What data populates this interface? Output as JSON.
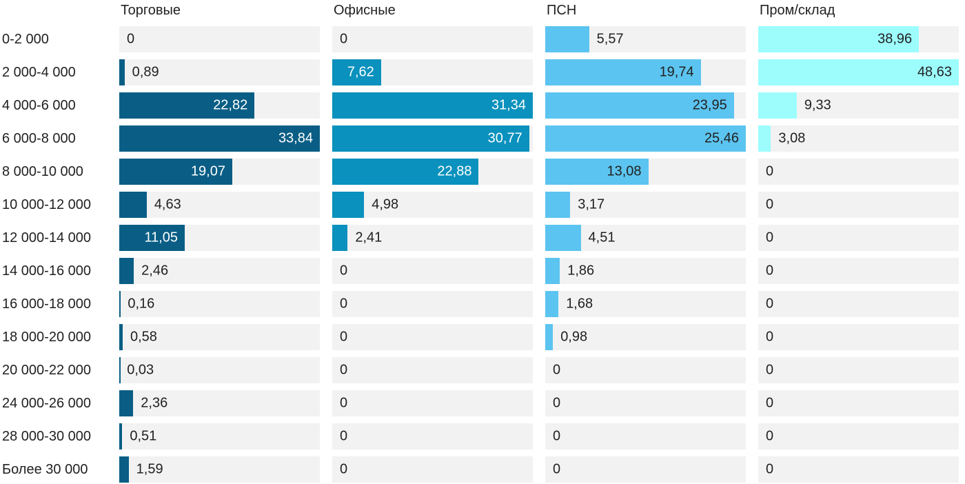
{
  "chart_data": {
    "type": "bar",
    "orientation": "horizontal",
    "title": "",
    "categories": [
      "0-2 000",
      "2 000-4 000",
      "4 000-6 000",
      "6 000-8 000",
      "8 000-10 000",
      "10 000-12 000",
      "12 000-14 000",
      "14 000-16 000",
      "16 000-18 000",
      "18 000-20 000",
      "20 000-22 000",
      "24 000-26 000",
      "28 000-30 000",
      "Более 30 000"
    ],
    "series": [
      {
        "name": "Торговые",
        "color": "#0a5e85",
        "label_color_inside": "#ffffff",
        "values": [
          0,
          0.89,
          22.82,
          33.84,
          19.07,
          4.63,
          11.05,
          2.46,
          0.16,
          0.58,
          0.03,
          2.36,
          0.51,
          1.59
        ]
      },
      {
        "name": "Офисные",
        "color": "#0a91bd",
        "label_color_inside": "#ffffff",
        "values": [
          0,
          7.62,
          31.34,
          30.77,
          22.88,
          4.98,
          2.41,
          0,
          0,
          0,
          0,
          0,
          0,
          0
        ]
      },
      {
        "name": "ПСН",
        "color": "#5cc4f0",
        "label_color_inside": "#212121",
        "values": [
          5.57,
          19.74,
          23.95,
          25.46,
          13.08,
          3.17,
          4.51,
          1.86,
          1.68,
          0.98,
          0,
          0,
          0,
          0
        ]
      },
      {
        "name": "Пром/склад",
        "color": "#9dfdfd",
        "label_color_inside": "#212121",
        "values": [
          38.96,
          48.63,
          9.33,
          3.08,
          0,
          0,
          0,
          0,
          0,
          0,
          0,
          0,
          0,
          0
        ]
      }
    ],
    "column_max": [
      33.84,
      31.34,
      25.46,
      48.63
    ],
    "independent_column_scales": true,
    "decimal_separator": ",",
    "track_color": "#f2f2f2",
    "outside_label_color": "#212121",
    "legend": "none",
    "grid": "off"
  }
}
